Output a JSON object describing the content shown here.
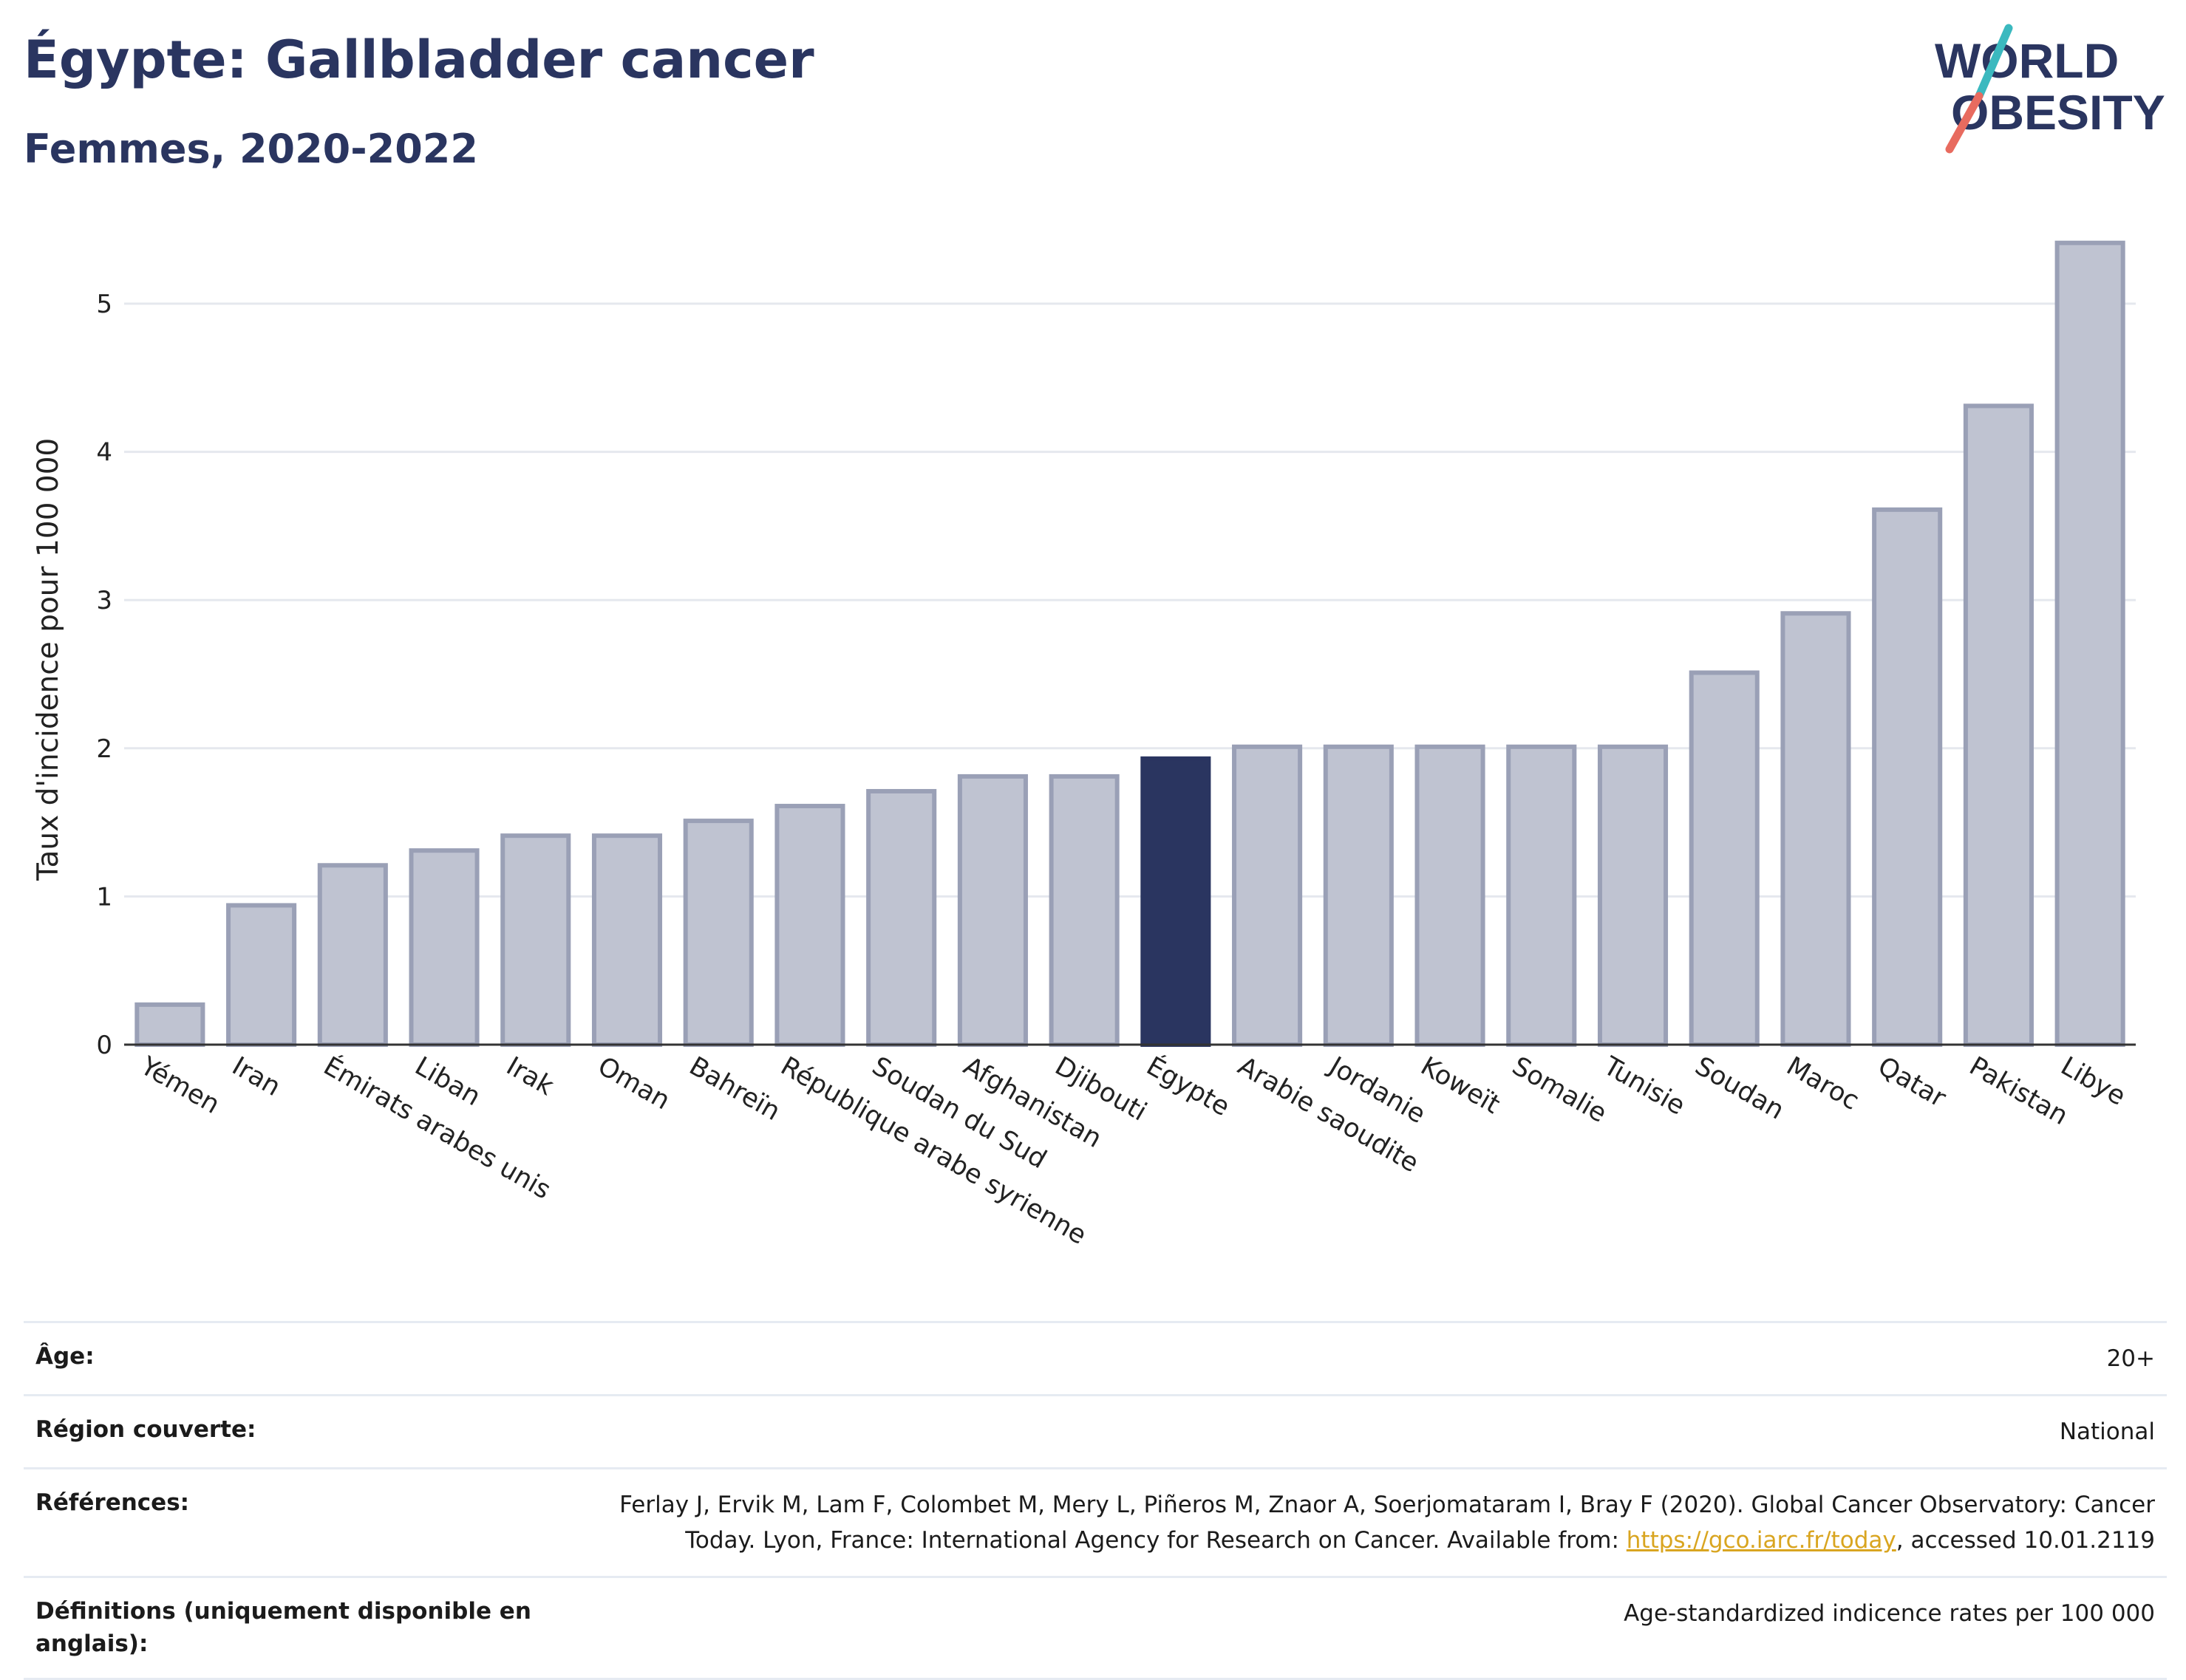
{
  "header": {
    "title": "Égypte: Gallbladder cancer",
    "subtitle": "Femmes, 2020-2022"
  },
  "logo": {
    "line1": "WORLD",
    "line2": "OBESITY"
  },
  "chart_data": {
    "type": "bar",
    "ylabel": "Taux d'incidence pour 100 000",
    "ylim": [
      0,
      5.6
    ],
    "yticks": [
      0,
      1,
      2,
      3,
      4,
      5
    ],
    "grid": true,
    "categories": [
      "Yémen",
      "Iran",
      "Émirats arabes unis",
      "Liban",
      "Irak",
      "Oman",
      "Bahreïn",
      "République arabe syrienne",
      "Soudan du Sud",
      "Afghanistan",
      "Djibouti",
      "Égypte",
      "Arabie saoudite",
      "Jordanie",
      "Koweït",
      "Somalie",
      "Tunisie",
      "Soudan",
      "Maroc",
      "Qatar",
      "Pakistan",
      "Libye"
    ],
    "values": [
      0.27,
      0.94,
      1.21,
      1.31,
      1.41,
      1.41,
      1.51,
      1.61,
      1.71,
      1.81,
      1.81,
      1.93,
      2.01,
      2.01,
      2.01,
      2.01,
      2.01,
      2.51,
      2.91,
      3.61,
      4.31,
      5.41
    ],
    "highlight": "Égypte",
    "colors": {
      "bar": "#bfc3d1",
      "bar_border": "#9aa0b6",
      "highlight": "#2a3560",
      "grid": "#e5e8ee",
      "axis": "#333333"
    }
  },
  "meta": {
    "age_label": "Âge:",
    "age_value": "20+",
    "region_label": "Région couverte:",
    "region_value": "National",
    "refs_label": "Références:",
    "refs_line1": "Ferlay J, Ervik M, Lam F, Colombet M, Mery L, Piñeros M, Znaor A, Soerjomataram I, Bray F (2020). Global Cancer Observatory: Cancer",
    "refs_line2_pre": "Today. Lyon, France: International Agency for Research on Cancer. Available from: ",
    "refs_link": "https://gco.iarc.fr/today",
    "refs_line2_post": ", accessed 10.01.2119",
    "defs_label": "Définitions (uniquement disponible en anglais):",
    "defs_value": "Age-standardized indicence rates per 100 000"
  }
}
